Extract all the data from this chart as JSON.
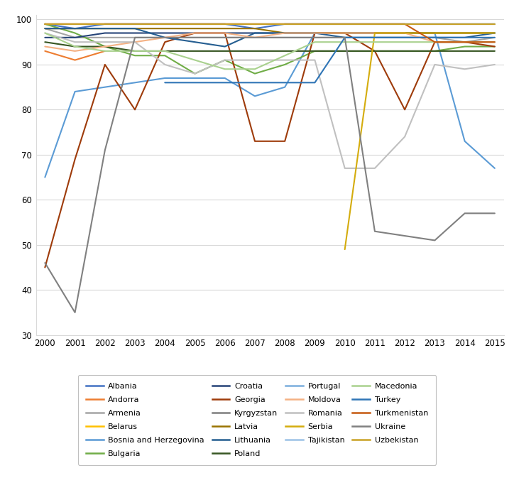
{
  "years": [
    2000,
    2001,
    2002,
    2003,
    2004,
    2005,
    2006,
    2007,
    2008,
    2009,
    2010,
    2011,
    2012,
    2013,
    2014,
    2015
  ],
  "countries": {
    "Albania": {
      "color": "#4472C4",
      "data": [
        99,
        98,
        99,
        99,
        99,
        99,
        99,
        98,
        99,
        99,
        99,
        99,
        99,
        99,
        99,
        99
      ]
    },
    "Andorra": {
      "color": "#ED7D31",
      "data": [
        93,
        91,
        93,
        null,
        null,
        null,
        null,
        null,
        null,
        null,
        null,
        null,
        null,
        null,
        null,
        null
      ]
    },
    "Armenia": {
      "color": "#A5A5A5",
      "data": [
        98,
        96,
        96,
        96,
        96,
        96,
        96,
        96,
        96,
        96,
        96,
        96,
        96,
        96,
        95,
        96
      ]
    },
    "Belarus": {
      "color": "#FFC000",
      "data": [
        99,
        99,
        99,
        99,
        99,
        99,
        99,
        99,
        99,
        99,
        99,
        99,
        99,
        99,
        99,
        99
      ]
    },
    "Bosnia and Herzegovina": {
      "color": "#5B9BD5",
      "data": [
        65,
        84,
        85,
        86,
        87,
        87,
        87,
        83,
        85,
        97,
        97,
        97,
        97,
        97,
        73,
        67
      ]
    },
    "Bulgaria": {
      "color": "#70AD47",
      "data": [
        99,
        97,
        94,
        92,
        92,
        88,
        91,
        88,
        90,
        93,
        93,
        93,
        93,
        93,
        94,
        94
      ]
    },
    "Croatia": {
      "color": "#264478",
      "data": [
        96,
        96,
        97,
        97,
        97,
        97,
        97,
        97,
        97,
        97,
        97,
        97,
        97,
        97,
        97,
        97
      ]
    },
    "Georgia": {
      "color": "#9E3B0A",
      "data": [
        45,
        69,
        90,
        80,
        95,
        97,
        97,
        73,
        73,
        97,
        97,
        93,
        80,
        95,
        95,
        94
      ]
    },
    "Kyrgyzstan": {
      "color": "#7F7F7F",
      "data": [
        null,
        null,
        null,
        null,
        null,
        null,
        null,
        null,
        null,
        null,
        null,
        null,
        null,
        null,
        null,
        null
      ]
    },
    "Latvia": {
      "color": "#997300",
      "data": [
        98,
        98,
        98,
        98,
        98,
        98,
        98,
        98,
        97,
        97,
        97,
        97,
        97,
        97,
        97,
        97
      ]
    },
    "Lithuania": {
      "color": "#255E91",
      "data": [
        98,
        98,
        98,
        98,
        96,
        95,
        94,
        97,
        97,
        97,
        96,
        96,
        96,
        96,
        96,
        97
      ]
    },
    "Poland": {
      "color": "#375623",
      "data": [
        95,
        94,
        94,
        93,
        93,
        93,
        93,
        93,
        93,
        93,
        93,
        93,
        93,
        93,
        93,
        93
      ]
    },
    "Portugal": {
      "color": "#7CAFDD",
      "data": [
        99,
        99,
        99,
        99,
        99,
        99,
        99,
        99,
        99,
        99,
        99,
        99,
        99,
        99,
        99,
        99
      ]
    },
    "Moldova": {
      "color": "#F4B183",
      "data": [
        94,
        93,
        94,
        95,
        96,
        97,
        97,
        96,
        97,
        97,
        97,
        97,
        97,
        95,
        95,
        95
      ]
    },
    "Romania": {
      "color": "#C0C0C0",
      "data": [
        97,
        95,
        95,
        95,
        90,
        88,
        91,
        91,
        91,
        91,
        67,
        67,
        74,
        90,
        89,
        90
      ]
    },
    "Serbia": {
      "color": "#D4AC0D",
      "data": [
        null,
        null,
        null,
        null,
        null,
        null,
        null,
        null,
        null,
        null,
        49,
        97,
        97,
        97,
        97,
        97
      ]
    },
    "Tajikistan": {
      "color": "#9DC3E6",
      "data": [
        99,
        99,
        99,
        99,
        99,
        99,
        99,
        99,
        99,
        99,
        99,
        99,
        99,
        99,
        99,
        99
      ]
    },
    "Macedonia": {
      "color": "#A9D18E",
      "data": [
        97,
        94,
        93,
        93,
        93,
        91,
        89,
        89,
        92,
        95,
        95,
        95,
        95,
        95,
        95,
        95
      ]
    },
    "Turkey": {
      "color": "#2F75B6",
      "data": [
        null,
        null,
        null,
        null,
        86,
        86,
        86,
        86,
        86,
        86,
        96,
        96,
        96,
        96,
        96,
        96
      ]
    },
    "Turkmenistan": {
      "color": "#C55A11",
      "data": [
        99,
        99,
        99,
        99,
        99,
        99,
        99,
        99,
        99,
        99,
        99,
        99,
        99,
        95,
        95,
        95
      ]
    },
    "Ukraine": {
      "color": "#808080",
      "data": [
        46,
        35,
        71,
        96,
        96,
        96,
        96,
        96,
        96,
        96,
        96,
        53,
        52,
        51,
        57,
        57
      ]
    },
    "Uzbekistan": {
      "color": "#C9A227",
      "data": [
        99,
        99,
        99,
        99,
        99,
        99,
        99,
        99,
        99,
        99,
        99,
        99,
        99,
        99,
        99,
        99
      ]
    }
  },
  "ylim": [
    30,
    101
  ],
  "yticks": [
    30,
    40,
    50,
    60,
    70,
    80,
    90,
    100
  ],
  "bg_color": "#FFFFFF",
  "plot_bg": "#FFFFFF",
  "grid_color": "#D9D9D9",
  "line_width": 1.5,
  "legend_order": [
    "Albania",
    "Andorra",
    "Armenia",
    "Belarus",
    "Bosnia and Herzegovina",
    "Bulgaria",
    "Croatia",
    "Georgia",
    "Kyrgyzstan",
    "Latvia",
    "Lithuania",
    "Poland",
    "Portugal",
    "Moldova",
    "Romania",
    "Serbia",
    "Tajikistan",
    "Macedonia",
    "Turkey",
    "Turkmenistan",
    "Ukraine",
    "Uzbekistan"
  ]
}
